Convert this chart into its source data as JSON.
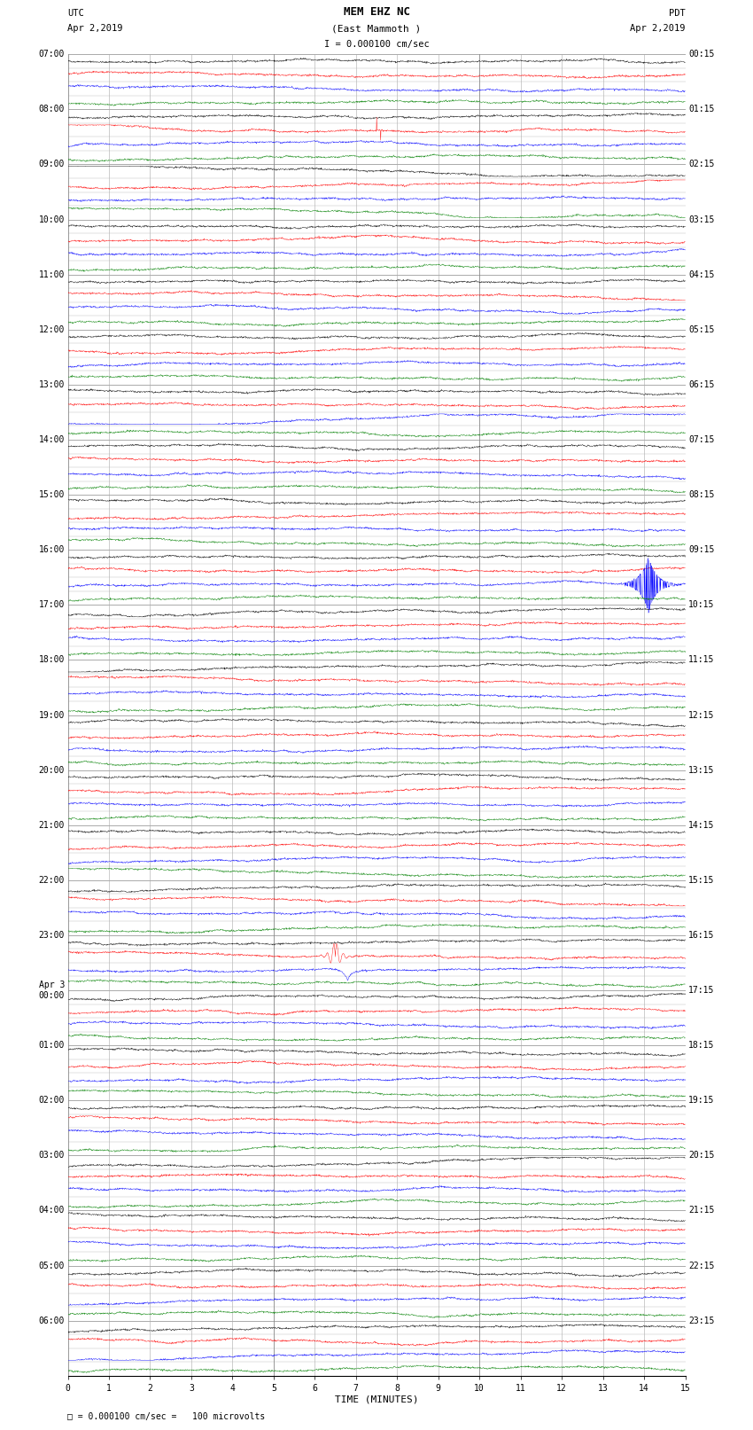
{
  "title_line1": "MEM EHZ NC",
  "title_line2": "(East Mammoth )",
  "title_line3": "I = 0.000100 cm/sec",
  "left_label_top": "UTC",
  "left_label_date": "Apr 2,2019",
  "right_label_top": "PDT",
  "right_label_date": "Apr 2,2019",
  "bottom_label": "TIME (MINUTES)",
  "scale_label": "= 0.000100 cm/sec =   100 microvolts",
  "num_rows": 96,
  "xlim": [
    0,
    15
  ],
  "colors_cycle": [
    "black",
    "red",
    "blue",
    "green"
  ],
  "bg_color": "#ffffff",
  "grid_color": "#999999",
  "left_time_labels": [
    "07:00",
    "",
    "",
    "",
    "08:00",
    "",
    "",
    "",
    "09:00",
    "",
    "",
    "",
    "10:00",
    "",
    "",
    "",
    "11:00",
    "",
    "",
    "",
    "12:00",
    "",
    "",
    "",
    "13:00",
    "",
    "",
    "",
    "14:00",
    "",
    "",
    "",
    "15:00",
    "",
    "",
    "",
    "16:00",
    "",
    "",
    "",
    "17:00",
    "",
    "",
    "",
    "18:00",
    "",
    "",
    "",
    "19:00",
    "",
    "",
    "",
    "20:00",
    "",
    "",
    "",
    "21:00",
    "",
    "",
    "",
    "22:00",
    "",
    "",
    "",
    "23:00",
    "",
    "",
    "",
    "Apr 3\n00:00",
    "",
    "",
    "",
    "01:00",
    "",
    "",
    "",
    "02:00",
    "",
    "",
    "",
    "03:00",
    "",
    "",
    "",
    "04:00",
    "",
    "",
    "",
    "05:00",
    "",
    "",
    "",
    "06:00",
    "",
    "",
    ""
  ],
  "right_time_labels": [
    "00:15",
    "",
    "",
    "",
    "01:15",
    "",
    "",
    "",
    "02:15",
    "",
    "",
    "",
    "03:15",
    "",
    "",
    "",
    "04:15",
    "",
    "",
    "",
    "05:15",
    "",
    "",
    "",
    "06:15",
    "",
    "",
    "",
    "07:15",
    "",
    "",
    "",
    "08:15",
    "",
    "",
    "",
    "09:15",
    "",
    "",
    "",
    "10:15",
    "",
    "",
    "",
    "11:15",
    "",
    "",
    "",
    "12:15",
    "",
    "",
    "",
    "13:15",
    "",
    "",
    "",
    "14:15",
    "",
    "",
    "",
    "15:15",
    "",
    "",
    "",
    "16:15",
    "",
    "",
    "",
    "17:15",
    "",
    "",
    "",
    "18:15",
    "",
    "",
    "",
    "19:15",
    "",
    "",
    "",
    "20:15",
    "",
    "",
    "",
    "21:15",
    "",
    "",
    "",
    "22:15",
    "",
    "",
    "",
    "23:15",
    "",
    "",
    ""
  ],
  "noise_seed": 42,
  "fig_width": 8.5,
  "fig_height": 16.13,
  "dpi": 100
}
